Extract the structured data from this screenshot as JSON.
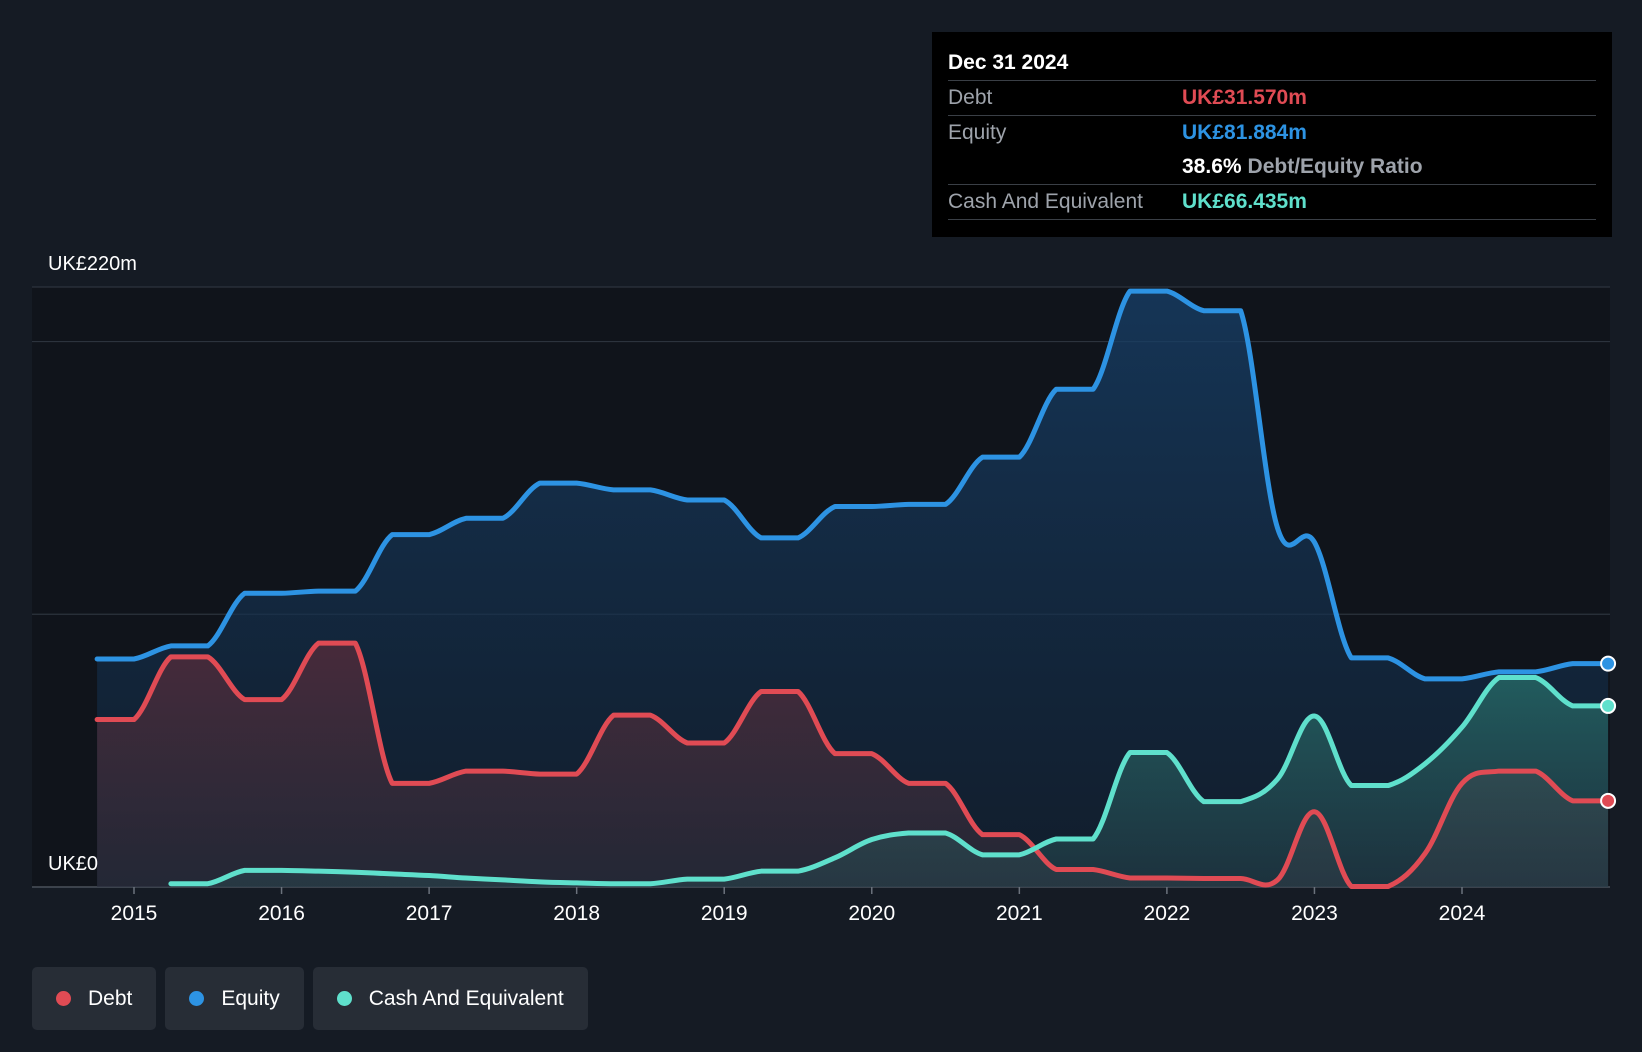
{
  "chart_data": {
    "type": "area",
    "y_top_label": "UK£220m",
    "y_bottom_label": "UK£0",
    "ylim": [
      0,
      220
    ],
    "xlim": [
      2014.7,
      2025.0
    ],
    "gridlines": [
      0,
      100,
      200,
      220
    ],
    "x_ticks": [
      "2015",
      "2016",
      "2017",
      "2018",
      "2019",
      "2020",
      "2021",
      "2022",
      "2023",
      "2024"
    ],
    "x_tick_values": [
      2015,
      2016,
      2017,
      2018,
      2019,
      2020,
      2021,
      2022,
      2023,
      2024
    ],
    "series": [
      {
        "name": "Equity",
        "color": "#2d93e3",
        "points": [
          [
            2014.75,
            83.6
          ],
          [
            2015.0,
            83.6
          ],
          [
            2015.25,
            88.4
          ],
          [
            2015.5,
            88.4
          ],
          [
            2015.75,
            107.7
          ],
          [
            2016.0,
            107.7
          ],
          [
            2016.25,
            108.5
          ],
          [
            2016.5,
            108.5
          ],
          [
            2016.75,
            129.2
          ],
          [
            2017.0,
            129.2
          ],
          [
            2017.25,
            135.2
          ],
          [
            2017.5,
            135.2
          ],
          [
            2017.75,
            148.1
          ],
          [
            2018.0,
            148.1
          ],
          [
            2018.25,
            145.6
          ],
          [
            2018.5,
            145.6
          ],
          [
            2018.75,
            141.9
          ],
          [
            2019.0,
            141.9
          ],
          [
            2019.25,
            128.0
          ],
          [
            2019.5,
            128.0
          ],
          [
            2019.75,
            139.5
          ],
          [
            2020.0,
            139.5
          ],
          [
            2020.25,
            140.3
          ],
          [
            2020.5,
            140.3
          ],
          [
            2020.75,
            157.6
          ],
          [
            2021.0,
            157.6
          ],
          [
            2021.25,
            182.5
          ],
          [
            2021.5,
            182.5
          ],
          [
            2021.75,
            218.5
          ],
          [
            2022.0,
            218.5
          ],
          [
            2022.25,
            211.3
          ],
          [
            2022.5,
            211.3
          ],
          [
            2022.75,
            131.6
          ],
          [
            2023.0,
            126.4
          ],
          [
            2023.25,
            84.0
          ],
          [
            2023.5,
            84.0
          ],
          [
            2023.75,
            76.3
          ],
          [
            2024.0,
            76.3
          ],
          [
            2024.25,
            78.9
          ],
          [
            2024.5,
            78.9
          ],
          [
            2024.75,
            81.9
          ],
          [
            2024.99,
            81.9
          ]
        ]
      },
      {
        "name": "Debt",
        "color": "#e04b54",
        "points": [
          [
            2014.75,
            61.4
          ],
          [
            2015.0,
            61.4
          ],
          [
            2015.25,
            84.4
          ],
          [
            2015.5,
            84.4
          ],
          [
            2015.75,
            68.7
          ],
          [
            2016.0,
            68.7
          ],
          [
            2016.25,
            89.4
          ],
          [
            2016.5,
            89.4
          ],
          [
            2016.75,
            38.0
          ],
          [
            2017.0,
            38.0
          ],
          [
            2017.25,
            42.5
          ],
          [
            2017.5,
            42.5
          ],
          [
            2017.75,
            41.4
          ],
          [
            2018.0,
            41.4
          ],
          [
            2018.25,
            63.0
          ],
          [
            2018.5,
            63.0
          ],
          [
            2018.75,
            52.8
          ],
          [
            2019.0,
            52.8
          ],
          [
            2019.25,
            71.7
          ],
          [
            2019.5,
            71.7
          ],
          [
            2019.75,
            48.9
          ],
          [
            2020.0,
            48.9
          ],
          [
            2020.25,
            38.0
          ],
          [
            2020.5,
            38.0
          ],
          [
            2020.75,
            19.2
          ],
          [
            2021.0,
            19.2
          ],
          [
            2021.25,
            6.4
          ],
          [
            2021.5,
            6.4
          ],
          [
            2021.75,
            3.3
          ],
          [
            2022.0,
            3.3
          ],
          [
            2022.25,
            3.1
          ],
          [
            2022.5,
            3.1
          ],
          [
            2022.75,
            2.6
          ],
          [
            2023.0,
            27.6
          ],
          [
            2023.25,
            0.2
          ],
          [
            2023.5,
            0.2
          ],
          [
            2023.75,
            12.3
          ],
          [
            2024.0,
            38.0
          ],
          [
            2024.25,
            42.5
          ],
          [
            2024.5,
            42.5
          ],
          [
            2024.75,
            31.6
          ],
          [
            2024.99,
            31.6
          ]
        ]
      },
      {
        "name": "Cash And Equivalent",
        "color": "#5fe0cc",
        "points": [
          [
            2015.25,
            1.2
          ],
          [
            2015.5,
            1.2
          ],
          [
            2015.75,
            6.1
          ],
          [
            2016.0,
            6.1
          ],
          [
            2016.25,
            5.8
          ],
          [
            2016.5,
            5.4
          ],
          [
            2016.75,
            4.8
          ],
          [
            2017.0,
            4.2
          ],
          [
            2017.25,
            3.3
          ],
          [
            2017.5,
            2.6
          ],
          [
            2017.75,
            1.9
          ],
          [
            2018.0,
            1.5
          ],
          [
            2018.25,
            1.2
          ],
          [
            2018.5,
            1.2
          ],
          [
            2018.75,
            2.9
          ],
          [
            2019.0,
            2.9
          ],
          [
            2019.25,
            5.8
          ],
          [
            2019.5,
            5.8
          ],
          [
            2019.75,
            10.7
          ],
          [
            2020.0,
            17.4
          ],
          [
            2020.25,
            19.8
          ],
          [
            2020.5,
            19.8
          ],
          [
            2020.75,
            11.8
          ],
          [
            2021.0,
            11.8
          ],
          [
            2021.25,
            17.6
          ],
          [
            2021.5,
            17.6
          ],
          [
            2021.75,
            49.3
          ],
          [
            2022.0,
            49.3
          ],
          [
            2022.25,
            31.3
          ],
          [
            2022.5,
            31.3
          ],
          [
            2022.75,
            39.6
          ],
          [
            2023.0,
            62.7
          ],
          [
            2023.25,
            37.2
          ],
          [
            2023.5,
            37.2
          ],
          [
            2023.75,
            45.2
          ],
          [
            2024.0,
            58.6
          ],
          [
            2024.25,
            76.8
          ],
          [
            2024.5,
            76.8
          ],
          [
            2024.75,
            66.4
          ],
          [
            2024.99,
            66.4
          ]
        ]
      }
    ],
    "tooltip": {
      "date": "Dec 31 2024",
      "debt_label": "Debt",
      "debt_value": "UK£31.570m",
      "equity_label": "Equity",
      "equity_value": "UK£81.884m",
      "ratio_value": "38.6%",
      "ratio_label": "Debt/Equity Ratio",
      "cash_label": "Cash And Equivalent",
      "cash_value": "UK£66.435m"
    },
    "legend": [
      "Debt",
      "Equity",
      "Cash And Equivalent"
    ],
    "legend_placement": "bottom-left"
  },
  "colors": {
    "background": "#151b24",
    "debt": "#e04b54",
    "equity": "#2d93e3",
    "cash": "#5fe0cc"
  }
}
